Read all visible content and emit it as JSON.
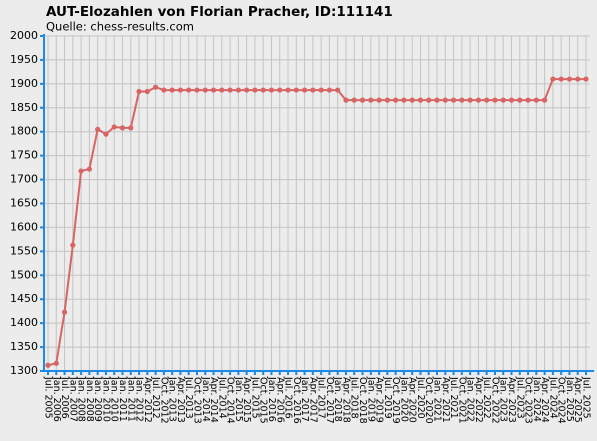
{
  "chart_data": {
    "type": "line",
    "title": "AUT-Elozahlen von Florian Pracher, ID:111141",
    "subtitle": "Quelle: chess-results.com",
    "categories": [
      "Jul. 2005",
      "Jan. 2006",
      "Jul. 2006",
      "Jan. 2007",
      "Jan. 2008",
      "Jan. 2008",
      "Jan. 2009",
      "Jan. 2010",
      "Jan. 2010",
      "Jan. 2011",
      "Jan. 2011",
      "Jan. 2012",
      "Apr. 2012",
      "Jul. 2012",
      "Oct. 2012",
      "Jan. 2013",
      "Apr. 2013",
      "Jul. 2013",
      "Oct. 2013",
      "Jan. 2014",
      "Apr. 2014",
      "Jul. 2014",
      "Oct. 2014",
      "Jan. 2015",
      "Apr. 2015",
      "Jul. 2015",
      "Oct. 2015",
      "Jan. 2016",
      "Apr. 2016",
      "Jul. 2016",
      "Oct. 2016",
      "Jan. 2017",
      "Apr. 2017",
      "Jul. 2017",
      "Oct. 2017",
      "Jan. 2018",
      "Apr. 2018",
      "Jul. 2018",
      "Oct. 2018",
      "Jan. 2019",
      "Apr. 2019",
      "Jul. 2019",
      "Oct. 2019",
      "Jan. 2020",
      "Apr. 2020",
      "Jul. 2020",
      "Oct. 2020",
      "Jan. 2021",
      "Apr. 2021",
      "Jul. 2021",
      "Oct. 2021",
      "Jan. 2022",
      "Apr. 2022",
      "Jul. 2022",
      "Oct. 2022",
      "Jan. 2023",
      "Apr. 2023",
      "Jul. 2023",
      "Oct. 2023",
      "Jan. 2024",
      "Apr. 2024",
      "Jul. 2024",
      "Oct. 2024",
      "Jan. 2025",
      "Apr. 2025",
      "Jul. 2025"
    ],
    "values": [
      1312,
      1316,
      1423,
      1563,
      1718,
      1722,
      1805,
      1795,
      1810,
      1808,
      1808,
      1884,
      1884,
      1893,
      1887,
      1887,
      1887,
      1887,
      1887,
      1887,
      1887,
      1887,
      1887,
      1887,
      1887,
      1887,
      1887,
      1887,
      1887,
      1887,
      1887,
      1887,
      1887,
      1887,
      1887,
      1887,
      1866,
      1866,
      1866,
      1866,
      1866,
      1866,
      1866,
      1866,
      1866,
      1866,
      1866,
      1866,
      1866,
      1866,
      1866,
      1866,
      1866,
      1866,
      1866,
      1866,
      1866,
      1866,
      1866,
      1866,
      1866,
      1910,
      1910,
      1910,
      1910,
      1910
    ],
    "color": "#d96464",
    "ylim": [
      1300,
      2000
    ],
    "yticks": [
      1300,
      1350,
      1400,
      1450,
      1500,
      1550,
      1600,
      1650,
      1700,
      1750,
      1800,
      1850,
      1900,
      1950,
      2000
    ],
    "grid": true
  }
}
